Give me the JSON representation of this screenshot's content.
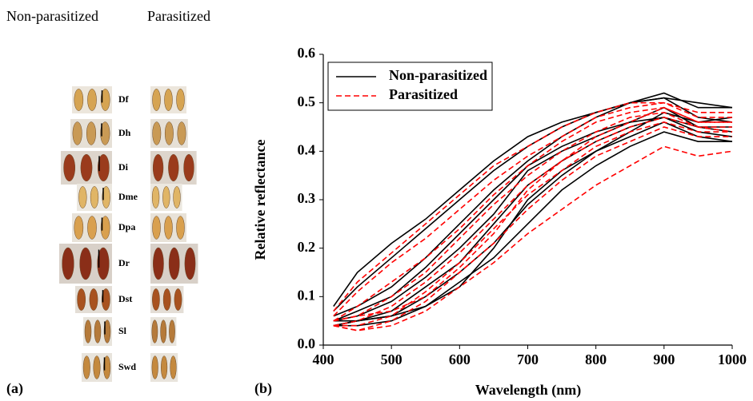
{
  "panel_a": {
    "headers": [
      "Non-parasitized",
      "Parasitized"
    ],
    "labels": [
      "Df",
      "Dh",
      "Di",
      "Dme",
      "Dpa",
      "Dr",
      "Dst",
      "Sl",
      "Swd"
    ],
    "panel_label": "(a)"
  },
  "chart_data": {
    "type": "line",
    "panel_label": "(b)",
    "xlabel": "Wavelength (nm)",
    "ylabel": "Relative reflectance",
    "x": [
      415,
      450,
      500,
      550,
      600,
      650,
      700,
      750,
      800,
      850,
      900,
      950,
      1000
    ],
    "xlim": [
      400,
      1000
    ],
    "xticks": [
      400,
      500,
      600,
      700,
      800,
      900,
      1000
    ],
    "ylim": [
      0,
      0.6
    ],
    "yticks": [
      {
        "value": 0,
        "label": "0.0"
      },
      0.1,
      0.2,
      0.3,
      0.4,
      0.5,
      0.6
    ],
    "legend": "upper left",
    "series": [
      {
        "name": "Non-parasitized",
        "color": "#000000",
        "linestyle": "solid",
        "values": [
          [
            0.08,
            0.15,
            0.21,
            0.26,
            0.32,
            0.38,
            0.43,
            0.46,
            0.48,
            0.5,
            0.51,
            0.5,
            0.49
          ],
          [
            0.07,
            0.12,
            0.18,
            0.24,
            0.3,
            0.36,
            0.41,
            0.45,
            0.48,
            0.5,
            0.52,
            0.49,
            0.49
          ],
          [
            0.06,
            0.08,
            0.12,
            0.18,
            0.25,
            0.32,
            0.38,
            0.43,
            0.47,
            0.5,
            0.51,
            0.47,
            0.46
          ],
          [
            0.05,
            0.07,
            0.1,
            0.16,
            0.23,
            0.3,
            0.37,
            0.41,
            0.44,
            0.46,
            0.47,
            0.45,
            0.45
          ],
          [
            0.05,
            0.06,
            0.09,
            0.14,
            0.2,
            0.27,
            0.36,
            0.4,
            0.43,
            0.46,
            0.49,
            0.45,
            0.44
          ],
          [
            0.05,
            0.05,
            0.07,
            0.12,
            0.17,
            0.25,
            0.33,
            0.38,
            0.42,
            0.45,
            0.47,
            0.44,
            0.43
          ],
          [
            0.04,
            0.05,
            0.06,
            0.1,
            0.15,
            0.21,
            0.29,
            0.35,
            0.4,
            0.43,
            0.46,
            0.43,
            0.42
          ],
          [
            0.04,
            0.04,
            0.05,
            0.08,
            0.13,
            0.18,
            0.25,
            0.32,
            0.37,
            0.41,
            0.44,
            0.42,
            0.42
          ],
          [
            0.04,
            0.05,
            0.06,
            0.08,
            0.12,
            0.2,
            0.3,
            0.36,
            0.4,
            0.44,
            0.48,
            0.46,
            0.47
          ]
        ]
      },
      {
        "name": "Parasitized",
        "color": "#ff0000",
        "linestyle": "dashed",
        "values": [
          [
            0.07,
            0.13,
            0.19,
            0.25,
            0.31,
            0.37,
            0.41,
            0.45,
            0.48,
            0.5,
            0.5,
            0.48,
            0.48
          ],
          [
            0.06,
            0.11,
            0.17,
            0.22,
            0.28,
            0.34,
            0.39,
            0.43,
            0.47,
            0.49,
            0.5,
            0.47,
            0.47
          ],
          [
            0.05,
            0.08,
            0.13,
            0.18,
            0.24,
            0.31,
            0.37,
            0.42,
            0.46,
            0.48,
            0.49,
            0.46,
            0.46
          ],
          [
            0.05,
            0.06,
            0.1,
            0.15,
            0.22,
            0.29,
            0.35,
            0.4,
            0.44,
            0.47,
            0.48,
            0.45,
            0.45
          ],
          [
            0.04,
            0.05,
            0.08,
            0.13,
            0.19,
            0.26,
            0.33,
            0.38,
            0.42,
            0.45,
            0.47,
            0.45,
            0.44
          ],
          [
            0.04,
            0.04,
            0.06,
            0.11,
            0.17,
            0.24,
            0.31,
            0.36,
            0.41,
            0.44,
            0.46,
            0.44,
            0.44
          ],
          [
            0.04,
            0.03,
            0.05,
            0.09,
            0.15,
            0.21,
            0.28,
            0.34,
            0.39,
            0.42,
            0.45,
            0.43,
            0.43
          ],
          [
            0.04,
            0.03,
            0.04,
            0.07,
            0.12,
            0.17,
            0.23,
            0.28,
            0.33,
            0.37,
            0.41,
            0.39,
            0.4
          ],
          [
            0.05,
            0.06,
            0.07,
            0.1,
            0.16,
            0.23,
            0.32,
            0.38,
            0.43,
            0.46,
            0.49,
            0.46,
            0.46
          ]
        ]
      }
    ]
  }
}
